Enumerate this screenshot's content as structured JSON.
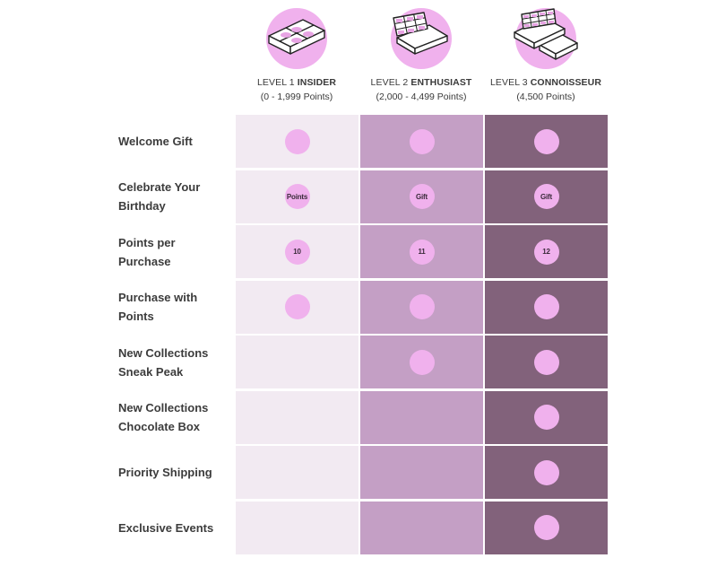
{
  "tiers": [
    {
      "level": "LEVEL 1",
      "name": "INSIDER",
      "range": "(0 - 1,999 Points)",
      "icon": "chocolate-box-4-icon"
    },
    {
      "level": "LEVEL 2",
      "name": "ENTHUSIAST",
      "range": "(2,000 - 4,499 Points)",
      "icon": "chocolate-box-9-icon"
    },
    {
      "level": "LEVEL 3",
      "name": "CONNOISSEUR",
      "range": "(4,500 Points)",
      "icon": "chocolate-box-stack-icon"
    }
  ],
  "colors": {
    "tier1_bg": "#f2eaf2",
    "tier2_bg": "#c49fc5",
    "tier3_bg": "#82627b",
    "dot": "#f0b1ed"
  },
  "benefits": [
    {
      "label": "Welcome Gift",
      "cells": [
        "",
        "",
        ""
      ],
      "included": [
        true,
        true,
        true
      ]
    },
    {
      "label": "Celebrate Your Birthday",
      "cells": [
        "Points",
        "Gift",
        "Gift"
      ],
      "included": [
        true,
        true,
        true
      ]
    },
    {
      "label": "Points per Purchase",
      "cells": [
        "10",
        "11",
        "12"
      ],
      "included": [
        true,
        true,
        true
      ]
    },
    {
      "label": "Purchase with Points",
      "cells": [
        "",
        "",
        ""
      ],
      "included": [
        true,
        true,
        true
      ]
    },
    {
      "label": "New Collections Sneak Peak",
      "cells": [
        "",
        "",
        ""
      ],
      "included": [
        false,
        true,
        true
      ]
    },
    {
      "label": "New Collections Chocolate Box",
      "cells": [
        "",
        "",
        ""
      ],
      "included": [
        false,
        false,
        true
      ]
    },
    {
      "label": "Priority Shipping",
      "cells": [
        "",
        "",
        ""
      ],
      "included": [
        false,
        false,
        true
      ]
    },
    {
      "label": "Exclusive Events",
      "cells": [
        "",
        "",
        ""
      ],
      "included": [
        false,
        false,
        true
      ]
    }
  ]
}
